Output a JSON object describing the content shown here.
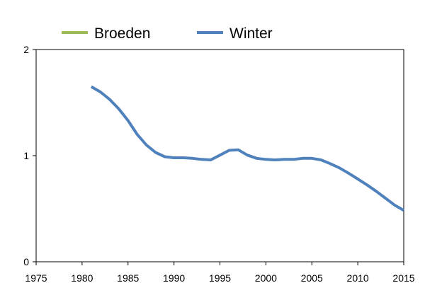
{
  "chart_data": {
    "type": "line",
    "xlim": [
      1975,
      2015
    ],
    "ylim": [
      0,
      2
    ],
    "x_ticks": [
      "1975",
      "1980",
      "1985",
      "1990",
      "1995",
      "2000",
      "2005",
      "2010",
      "2015"
    ],
    "y_ticks": [
      "0",
      "1",
      "2"
    ],
    "grid": false,
    "legend_position": "top",
    "series": [
      {
        "name": "Broeden",
        "color": "#9bbb59",
        "x": [],
        "y": []
      },
      {
        "name": "Winter",
        "color": "#4f81bd",
        "x": [
          1981,
          1982,
          1983,
          1984,
          1985,
          1986,
          1987,
          1988,
          1989,
          1990,
          1991,
          1992,
          1993,
          1994,
          1995,
          1996,
          1997,
          1998,
          1999,
          2000,
          2001,
          2002,
          2003,
          2004,
          2005,
          2006,
          2007,
          2008,
          2009,
          2010,
          2011,
          2012,
          2013,
          2014,
          2015
        ],
        "y": [
          1.65,
          1.6,
          1.53,
          1.44,
          1.33,
          1.2,
          1.1,
          1.03,
          0.99,
          0.98,
          0.98,
          0.975,
          0.965,
          0.96,
          1.005,
          1.05,
          1.055,
          1.005,
          0.975,
          0.965,
          0.96,
          0.965,
          0.965,
          0.975,
          0.975,
          0.96,
          0.925,
          0.885,
          0.835,
          0.78,
          0.725,
          0.665,
          0.6,
          0.535,
          0.485
        ]
      }
    ]
  }
}
